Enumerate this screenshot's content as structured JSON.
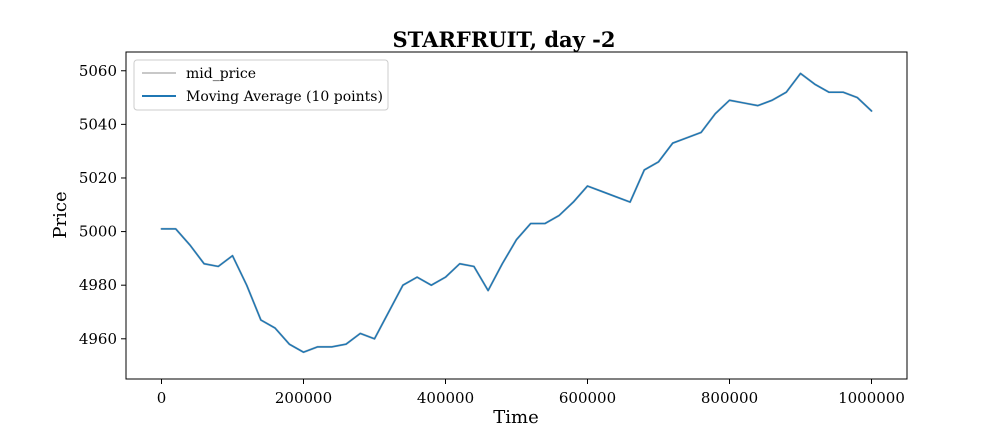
{
  "chart_data": {
    "type": "line",
    "title": "STARFRUIT, day -2",
    "xlabel": "Time",
    "ylabel": "Price",
    "xlim": [
      -50000,
      1050000
    ],
    "ylim": [
      4945,
      5067
    ],
    "xticks": [
      0,
      200000,
      400000,
      600000,
      800000,
      1000000
    ],
    "xtick_labels": [
      "0",
      "200000",
      "400000",
      "600000",
      "800000",
      "1000000"
    ],
    "yticks": [
      4960,
      4980,
      5000,
      5020,
      5040,
      5060
    ],
    "ytick_labels": [
      "4960",
      "4980",
      "5000",
      "5020",
      "5040",
      "5060"
    ],
    "grid": false,
    "legend_position": "upper-left",
    "series": [
      {
        "name": "mid_price",
        "color": "#c8c8c8",
        "x": [
          0,
          20000,
          40000,
          60000,
          80000,
          100000,
          120000,
          140000,
          160000,
          180000,
          200000,
          220000,
          240000,
          260000,
          280000,
          300000,
          320000,
          340000,
          360000,
          380000,
          400000,
          420000,
          440000,
          460000,
          480000,
          500000,
          520000,
          540000,
          560000,
          580000,
          600000,
          620000,
          640000,
          660000,
          680000,
          700000,
          720000,
          740000,
          760000,
          780000,
          800000,
          820000,
          840000,
          860000,
          880000,
          900000,
          920000,
          940000,
          960000,
          980000,
          1000000
        ],
        "y": [
          5001,
          5001,
          4995,
          4988,
          4987,
          4991,
          4980,
          4967,
          4964,
          4958,
          4955,
          4957,
          4957,
          4958,
          4962,
          4960,
          4970,
          4980,
          4983,
          4980,
          4983,
          4988,
          4987,
          4978,
          4988,
          4997,
          5003,
          5003,
          5006,
          5011,
          5017,
          5015,
          5013,
          5011,
          5023,
          5026,
          5033,
          5035,
          5037,
          5044,
          5049,
          5048,
          5047,
          5049,
          5052,
          5059,
          5055,
          5052,
          5052,
          5050,
          5045
        ]
      },
      {
        "name": "Moving Average (10 points)",
        "color": "#1f77b4",
        "x": [
          0,
          20000,
          40000,
          60000,
          80000,
          100000,
          120000,
          140000,
          160000,
          180000,
          200000,
          220000,
          240000,
          260000,
          280000,
          300000,
          320000,
          340000,
          360000,
          380000,
          400000,
          420000,
          440000,
          460000,
          480000,
          500000,
          520000,
          540000,
          560000,
          580000,
          600000,
          620000,
          640000,
          660000,
          680000,
          700000,
          720000,
          740000,
          760000,
          780000,
          800000,
          820000,
          840000,
          860000,
          880000,
          900000,
          920000,
          940000,
          960000,
          980000,
          1000000
        ],
        "y": [
          5001,
          5001,
          4995,
          4988,
          4987,
          4991,
          4980,
          4967,
          4964,
          4958,
          4955,
          4957,
          4957,
          4958,
          4962,
          4960,
          4970,
          4980,
          4983,
          4980,
          4983,
          4988,
          4987,
          4978,
          4988,
          4997,
          5003,
          5003,
          5006,
          5011,
          5017,
          5015,
          5013,
          5011,
          5023,
          5026,
          5033,
          5035,
          5037,
          5044,
          5049,
          5048,
          5047,
          5049,
          5052,
          5059,
          5055,
          5052,
          5052,
          5050,
          5045
        ]
      }
    ]
  }
}
